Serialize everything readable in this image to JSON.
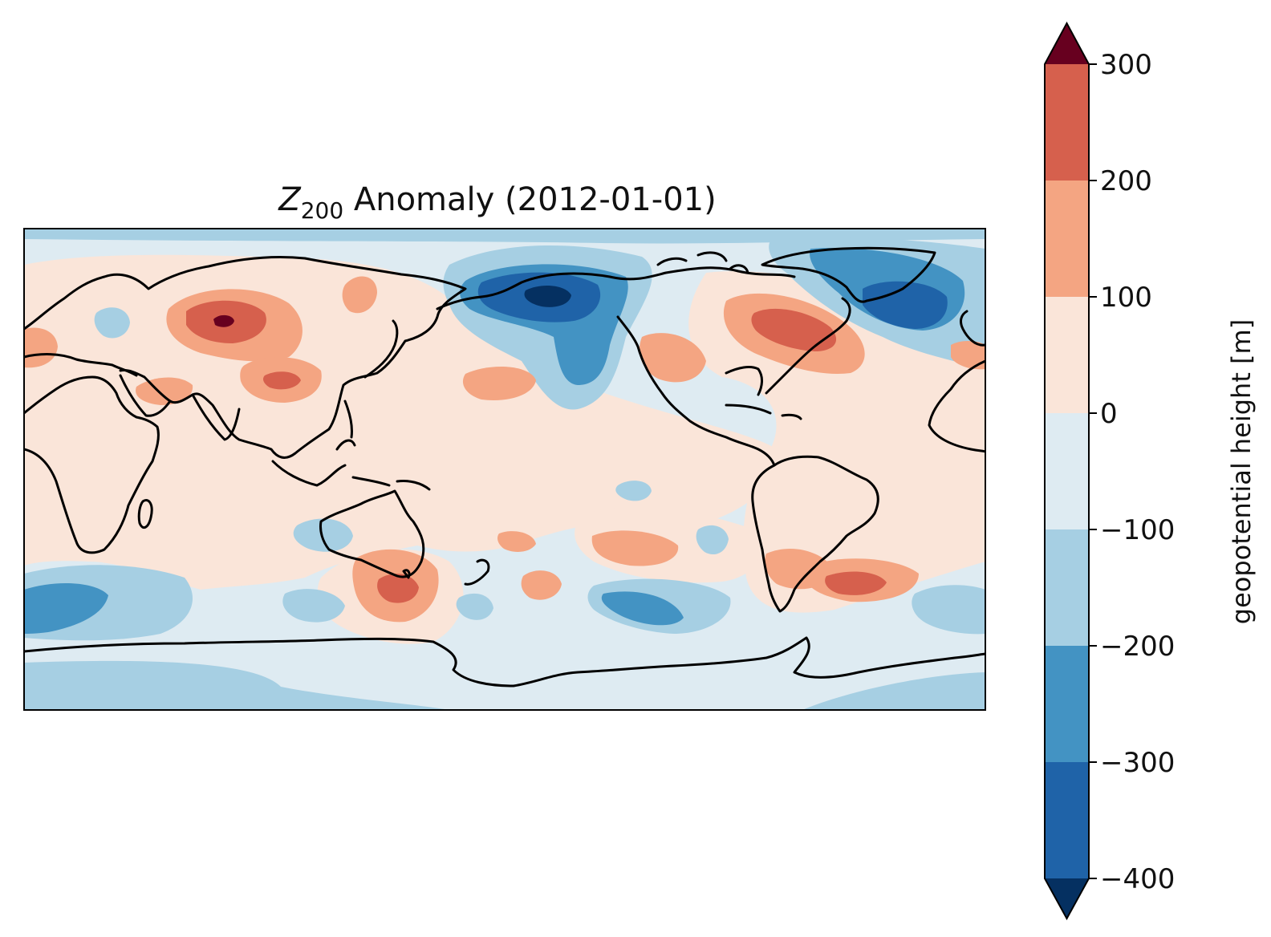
{
  "chart_data": {
    "type": "heatmap",
    "title_var": "Z",
    "title_sub": "200",
    "title_rest": " Anomaly (2012-01-01)",
    "colorbar": {
      "label": "geopotential height [m]",
      "ticks": [
        "300",
        "200",
        "100",
        "0",
        "−100",
        "−200",
        "−300",
        "−400"
      ],
      "levels": [
        -400,
        -300,
        -200,
        -100,
        0,
        100,
        200,
        300
      ],
      "colors": [
        "#1f63a8",
        "#4393c3",
        "#a6cfe3",
        "#deebf2",
        "#fae5d9",
        "#f4a582",
        "#d6604d"
      ],
      "under_color": "#053061",
      "over_color": "#67001f",
      "extend": "both"
    },
    "background_color": "#deebf2"
  }
}
